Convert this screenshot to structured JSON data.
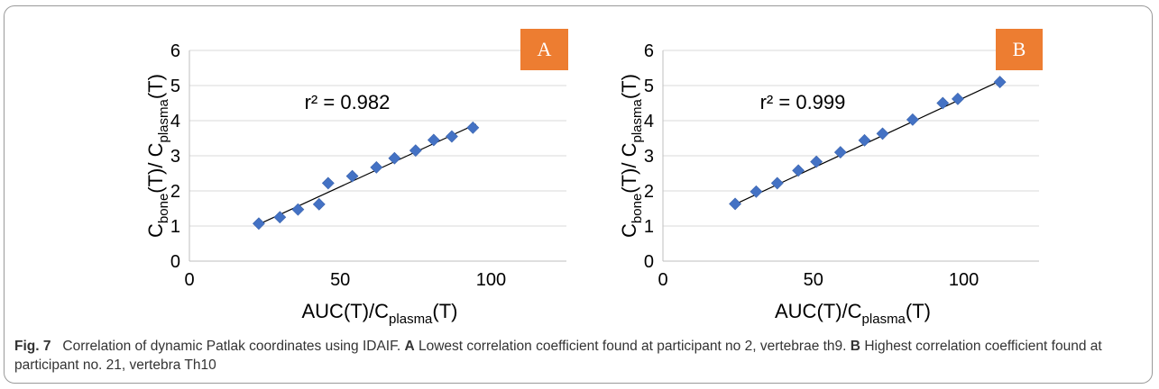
{
  "caption": {
    "fig_label": "Fig. 7",
    "lead": "Correlation of dynamic Patlak coordinates using IDAIF.",
    "a_label": "A",
    "a_text": "Lowest correlation coefficient found at participant no 2, vertebrae th9.",
    "b_label": "B",
    "b_text": "Highest correlation coefficient found at participant no. 21, vertebra Th10"
  },
  "colors": {
    "marker": "#4472C4",
    "panel_box": "#ED7D31",
    "trend": "#000000"
  },
  "chart_data": [
    {
      "type": "scatter",
      "panel": "A",
      "annotation": "r² = 0.982",
      "xlabel": {
        "main": "AUC(T)/C",
        "sub": "plasma",
        "tail": "(T)"
      },
      "ylabel": {
        "c": "C",
        "sub1": "bone",
        "mid": "(T)/ C",
        "sub2": "plasma",
        "tail": "(T)"
      },
      "xlim": [
        0,
        125
      ],
      "ylim": [
        0,
        6
      ],
      "xticks": [
        0,
        50,
        100
      ],
      "yticks": [
        0,
        1,
        2,
        3,
        4,
        5,
        6
      ],
      "grid": true,
      "x": [
        23,
        30,
        36,
        43,
        46,
        54,
        62,
        68,
        75,
        81,
        87,
        94
      ],
      "y": [
        1.07,
        1.25,
        1.47,
        1.62,
        2.22,
        2.42,
        2.67,
        2.93,
        3.15,
        3.45,
        3.55,
        3.8
      ],
      "trendline": [
        [
          23,
          1.05
        ],
        [
          95,
          3.9
        ]
      ]
    },
    {
      "type": "scatter",
      "panel": "B",
      "annotation": "r² = 0.999",
      "xlabel": {
        "main": "AUC(T)/C",
        "sub": "plasma",
        "tail": "(T)"
      },
      "ylabel": {
        "c": "C",
        "sub1": "bone",
        "mid": "(T)/ C",
        "sub2": "plasma",
        "tail": "(T)"
      },
      "xlim": [
        0,
        125
      ],
      "ylim": [
        0,
        6
      ],
      "xticks": [
        0,
        50,
        100
      ],
      "yticks": [
        0,
        1,
        2,
        3,
        4,
        5,
        6
      ],
      "grid": true,
      "x": [
        24,
        31,
        38,
        45,
        51,
        59,
        67,
        73,
        83,
        93,
        98,
        112
      ],
      "y": [
        1.63,
        1.98,
        2.22,
        2.58,
        2.83,
        3.1,
        3.44,
        3.63,
        4.03,
        4.5,
        4.62,
        5.1
      ],
      "trendline": [
        [
          24,
          1.62
        ],
        [
          112,
          5.13
        ]
      ]
    }
  ]
}
